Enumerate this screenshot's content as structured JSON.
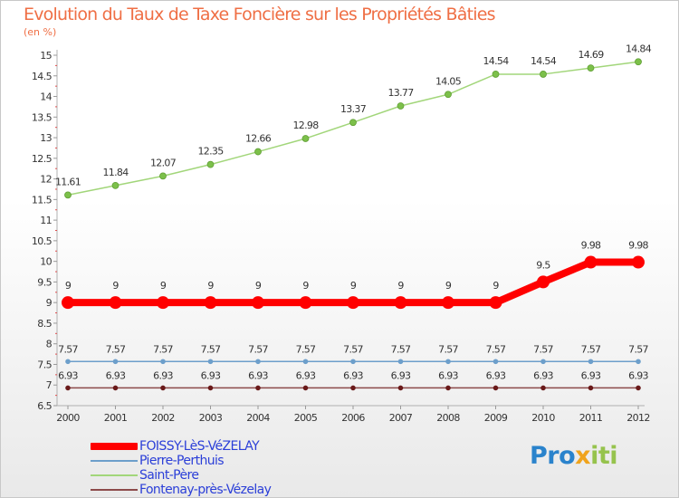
{
  "title": "Evolution du Taux de Taxe Foncière sur les Propriétés Bâties",
  "unit_label": "(en %)",
  "logo": {
    "parts": [
      "Pro",
      "x",
      "iti"
    ],
    "colors": [
      "#2a83cc",
      "#f0a31c",
      "#96c34d"
    ]
  },
  "chart_data": {
    "type": "line",
    "title": "Evolution du Taux de Taxe Foncière sur les Propriétés Bâties",
    "ylabel": "(en %)",
    "xlabel": "",
    "ylim": [
      6.5,
      15
    ],
    "yticks": [
      "6.5",
      "7",
      "7.5",
      "8",
      "8.5",
      "9",
      "9.5",
      "10",
      "10.5",
      "11",
      "11.5",
      "12",
      "12.5",
      "13",
      "13.5",
      "14",
      "14.5",
      "15"
    ],
    "categories": [
      "2000",
      "2001",
      "2002",
      "2003",
      "2004",
      "2005",
      "2006",
      "2007",
      "2008",
      "2009",
      "2010",
      "2011",
      "2012"
    ],
    "series": [
      {
        "name": "FOISSY-LèS-VéZELAY",
        "color": "#ff0000",
        "values": [
          9,
          9,
          9,
          9,
          9,
          9,
          9,
          9,
          9,
          9,
          9.5,
          9.98,
          9.98
        ],
        "labels": [
          "9",
          "9",
          "9",
          "9",
          "9",
          "9",
          "9",
          "9",
          "9",
          "9",
          "9.5",
          "9.98",
          "9.98"
        ]
      },
      {
        "name": "Pierre-Perthuis",
        "color": "#6d9fcb",
        "values": [
          7.57,
          7.57,
          7.57,
          7.57,
          7.57,
          7.57,
          7.57,
          7.57,
          7.57,
          7.57,
          7.57,
          7.57,
          7.57
        ],
        "labels": [
          "7.57",
          "7.57",
          "7.57",
          "7.57",
          "7.57",
          "7.57",
          "7.57",
          "7.57",
          "7.57",
          "7.57",
          "7.57",
          "7.57",
          "7.57"
        ]
      },
      {
        "name": "Saint-Père",
        "color": "#a2d67a",
        "values": [
          11.61,
          11.84,
          12.07,
          12.35,
          12.66,
          12.98,
          13.37,
          13.77,
          14.05,
          14.54,
          14.54,
          14.69,
          14.84
        ],
        "labels": [
          "11.61",
          "11.84",
          "12.07",
          "12.35",
          "12.66",
          "12.98",
          "13.37",
          "13.77",
          "14.05",
          "14.54",
          "14.54",
          "14.69",
          "14.84"
        ]
      },
      {
        "name": "Fontenay-près-Vézelay",
        "color": "#8c4a4a",
        "values": [
          6.93,
          6.93,
          6.93,
          6.93,
          6.93,
          6.93,
          6.93,
          6.93,
          6.93,
          6.93,
          6.93,
          6.93,
          6.93
        ],
        "labels": [
          "6.93",
          "6.93",
          "6.93",
          "6.93",
          "6.93",
          "6.93",
          "6.93",
          "6.93",
          "6.93",
          "6.93",
          "6.93",
          "6.93",
          "6.93"
        ]
      }
    ],
    "legend_position": "bottom-left"
  }
}
